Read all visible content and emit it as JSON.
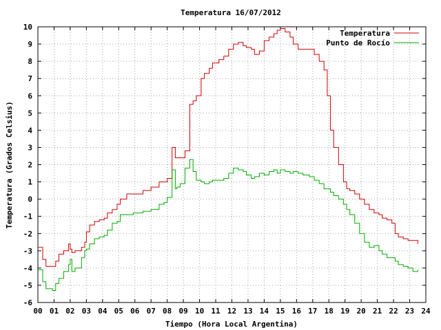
{
  "chart_data": {
    "type": "line",
    "title": "Temperatura 16/07/2012",
    "xlabel": "Tiempo (Hora Local Argentina)",
    "ylabel": "Temperatura (Grados Celsius)",
    "xlim": [
      0,
      24
    ],
    "ylim": [
      -6,
      10
    ],
    "x_ticks": [
      "00",
      "01",
      "02",
      "03",
      "04",
      "05",
      "06",
      "07",
      "08",
      "09",
      "10",
      "11",
      "12",
      "13",
      "14",
      "15",
      "16",
      "17",
      "18",
      "19",
      "20",
      "21",
      "22",
      "23",
      "24"
    ],
    "y_ticks": [
      "10",
      "9",
      "8",
      "7",
      "6",
      "5",
      "4",
      "3",
      "2",
      "1",
      "0",
      "-1",
      "-2",
      "-3",
      "-4",
      "-5",
      "-6"
    ],
    "grid": true,
    "legend_position": "top-right",
    "colors": {
      "temperatura": "#cc0000",
      "rocio": "#00aa00",
      "grid": "#a0a0a0",
      "axis": "#000000"
    },
    "series": [
      {
        "name": "Temperatura",
        "color": "#cc0000",
        "x": [
          0,
          0.3,
          0.5,
          0.9,
          1.1,
          1.3,
          1.6,
          1.9,
          2.0,
          2.1,
          2.3,
          2.7,
          2.9,
          3.0,
          3.2,
          3.5,
          3.8,
          4.1,
          4.3,
          4.6,
          4.9,
          5.1,
          5.5,
          5.9,
          6.1,
          6.5,
          7.0,
          7.5,
          7.8,
          8.0,
          8.3,
          8.5,
          8.6,
          8.8,
          9.1,
          9.4,
          9.6,
          9.8,
          10.1,
          10.3,
          10.6,
          10.8,
          11.2,
          11.5,
          11.8,
          12.1,
          12.4,
          12.7,
          12.9,
          13.2,
          13.4,
          13.7,
          14.0,
          14.3,
          14.6,
          14.8,
          15.0,
          15.3,
          15.6,
          15.8,
          16.1,
          16.4,
          16.8,
          17.1,
          17.4,
          17.7,
          17.9,
          18.1,
          18.3,
          18.6,
          18.9,
          19.1,
          19.3,
          19.6,
          19.9,
          20.2,
          20.5,
          20.8,
          21.1,
          21.3,
          21.6,
          21.9,
          22.1,
          22.3,
          22.6,
          22.9,
          23.2,
          23.5
        ],
        "y": [
          -2.8,
          -3.5,
          -3.9,
          -3.9,
          -3.6,
          -3.2,
          -3.0,
          -2.6,
          -2.9,
          -3.1,
          -3.0,
          -2.8,
          -2.5,
          -1.9,
          -1.5,
          -1.3,
          -1.2,
          -1.1,
          -0.8,
          -0.6,
          -0.3,
          0.0,
          0.3,
          0.3,
          0.3,
          0.5,
          0.7,
          1.0,
          1.0,
          1.2,
          3.0,
          2.4,
          2.4,
          2.4,
          2.8,
          5.5,
          5.7,
          6.0,
          7.0,
          7.3,
          7.6,
          7.9,
          8.1,
          8.3,
          8.7,
          9.0,
          9.1,
          8.9,
          8.8,
          8.7,
          8.4,
          8.6,
          9.2,
          9.4,
          9.6,
          9.8,
          9.9,
          9.7,
          9.4,
          9.0,
          8.7,
          8.7,
          8.7,
          8.4,
          8.0,
          7.5,
          6.0,
          4.0,
          3.0,
          2.0,
          1.0,
          0.6,
          0.5,
          0.3,
          0.0,
          -0.3,
          -0.6,
          -0.8,
          -0.9,
          -1.1,
          -1.2,
          -1.4,
          -2.0,
          -2.2,
          -2.3,
          -2.4,
          -2.4,
          -2.6
        ]
      },
      {
        "name": "Punto de Rocío",
        "color": "#00aa00",
        "x": [
          0,
          0.3,
          0.5,
          0.9,
          1.1,
          1.3,
          1.6,
          1.9,
          2.0,
          2.1,
          2.3,
          2.7,
          2.9,
          3.0,
          3.2,
          3.5,
          3.8,
          4.1,
          4.3,
          4.6,
          4.9,
          5.1,
          5.5,
          5.9,
          6.1,
          6.5,
          7.0,
          7.5,
          7.8,
          8.0,
          8.3,
          8.5,
          8.6,
          8.8,
          9.1,
          9.4,
          9.6,
          9.8,
          10.1,
          10.3,
          10.6,
          10.8,
          11.2,
          11.5,
          11.8,
          12.1,
          12.4,
          12.7,
          12.9,
          13.2,
          13.4,
          13.7,
          14.0,
          14.3,
          14.6,
          14.8,
          15.0,
          15.3,
          15.6,
          15.8,
          16.1,
          16.4,
          16.8,
          17.1,
          17.4,
          17.7,
          17.9,
          18.1,
          18.3,
          18.6,
          18.9,
          19.1,
          19.3,
          19.6,
          19.9,
          20.2,
          20.5,
          20.8,
          21.1,
          21.3,
          21.6,
          21.9,
          22.1,
          22.3,
          22.6,
          22.9,
          23.2,
          23.5
        ],
        "y": [
          -4.1,
          -4.8,
          -5.2,
          -5.3,
          -4.9,
          -4.6,
          -4.2,
          -3.8,
          -3.5,
          -4.2,
          -4.0,
          -3.4,
          -3.0,
          -2.9,
          -2.6,
          -2.3,
          -2.2,
          -2.1,
          -1.8,
          -1.4,
          -1.3,
          -0.9,
          -0.9,
          -0.8,
          -0.8,
          -0.7,
          -0.6,
          -0.3,
          -0.2,
          0.1,
          1.7,
          0.6,
          0.7,
          0.9,
          1.8,
          2.3,
          1.6,
          1.1,
          1.0,
          0.9,
          1.0,
          1.1,
          1.1,
          1.2,
          1.5,
          1.8,
          1.7,
          1.6,
          1.4,
          1.2,
          1.3,
          1.5,
          1.4,
          1.6,
          1.7,
          1.5,
          1.7,
          1.6,
          1.5,
          1.6,
          1.5,
          1.4,
          1.3,
          1.1,
          0.9,
          0.6,
          0.6,
          0.4,
          0.2,
          0.0,
          -0.3,
          -0.6,
          -0.9,
          -1.4,
          -2.0,
          -2.5,
          -2.8,
          -2.7,
          -3.0,
          -3.2,
          -3.4,
          -3.4,
          -3.6,
          -3.8,
          -3.9,
          -4.0,
          -4.2,
          -4.1
        ]
      }
    ]
  }
}
